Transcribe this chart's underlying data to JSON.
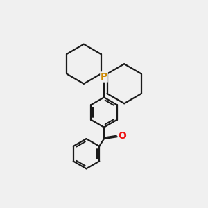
{
  "bg_color": "#f0f0f0",
  "bond_color": "#1a1a1a",
  "p_color": "#cc8800",
  "o_color": "#ee1111",
  "bond_width": 1.6,
  "fig_size": [
    3.0,
    3.0
  ],
  "dpi": 100,
  "xlim": [
    0,
    10
  ],
  "ylim": [
    0,
    10
  ]
}
